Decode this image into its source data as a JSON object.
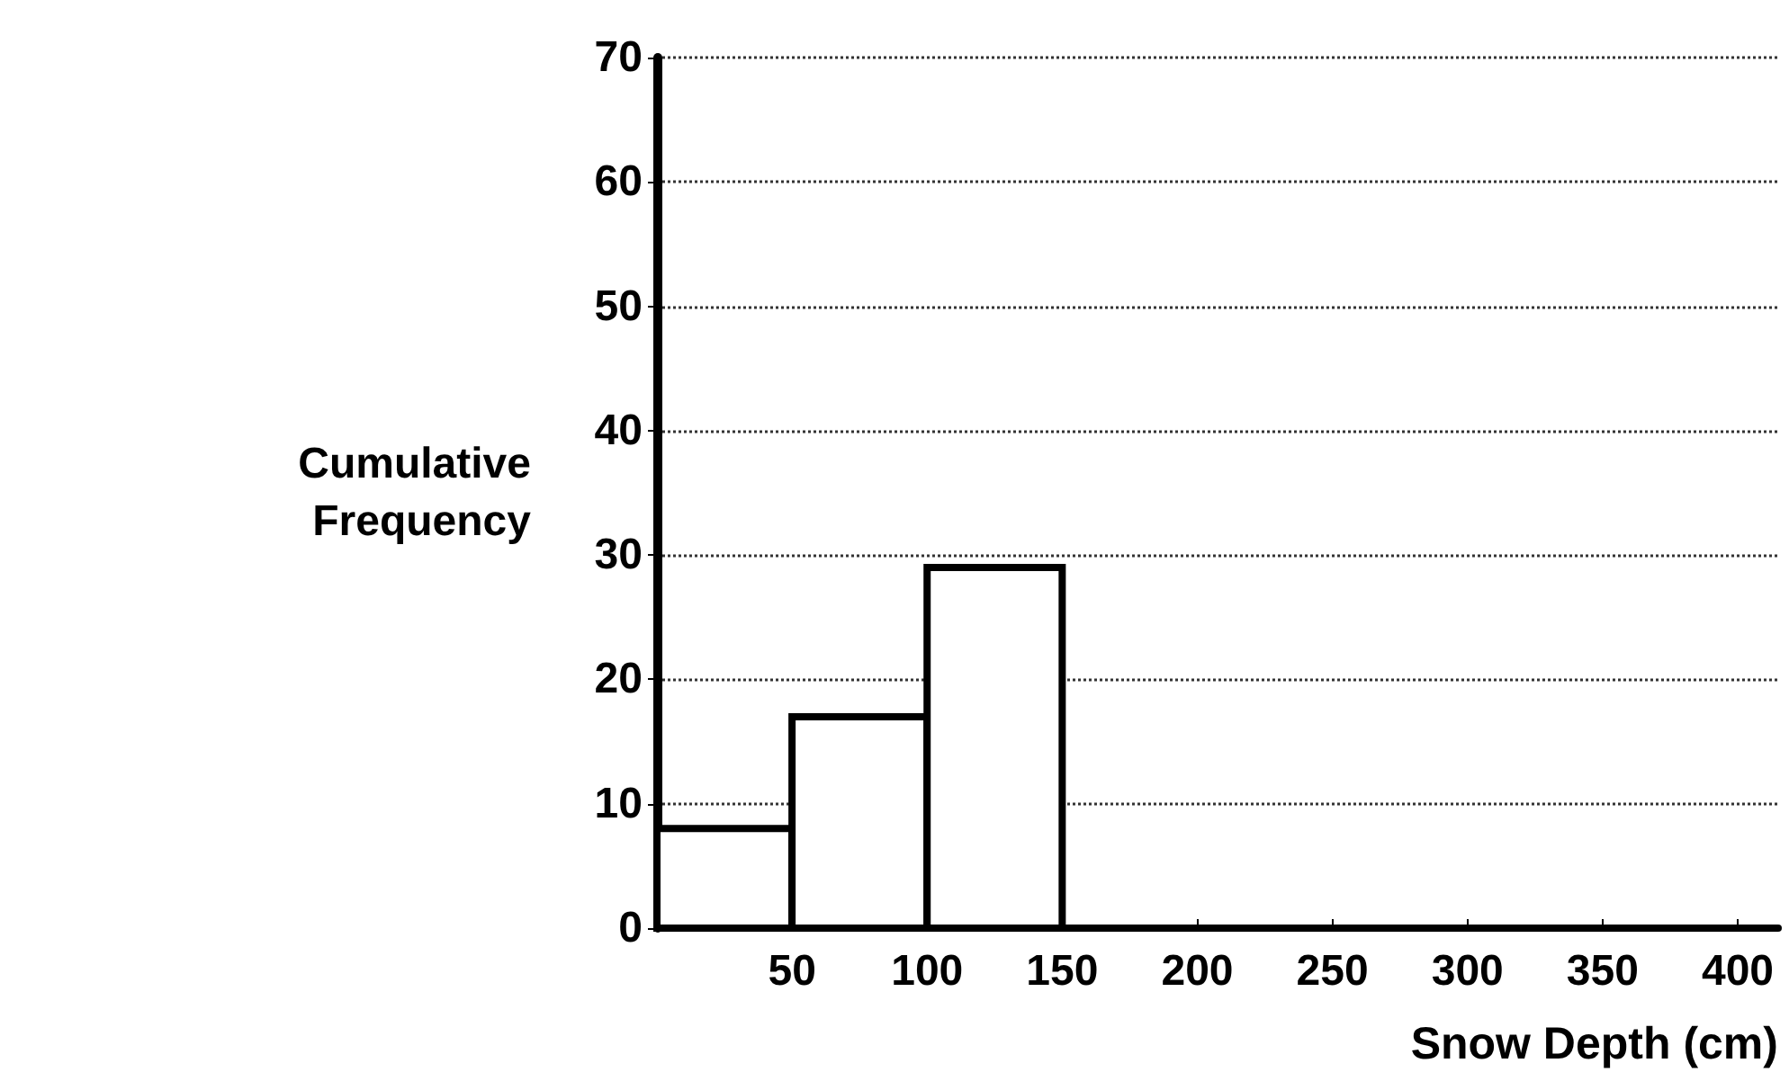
{
  "chart_data": {
    "type": "histogram",
    "xlabel": "Snow Depth (cm)",
    "ylabel": "Cumulative\nFrequency",
    "bins": [
      0,
      50,
      100,
      150
    ],
    "values": [
      8,
      17,
      29
    ],
    "color": "#ffffff",
    "xlim": [
      0,
      415
    ],
    "xticks": [
      50,
      100,
      150,
      200,
      250,
      300,
      350,
      400
    ],
    "ylim": [
      0,
      70
    ],
    "yticks": [
      0,
      10,
      20,
      30,
      40,
      50,
      60,
      70
    ],
    "grid": "y"
  }
}
